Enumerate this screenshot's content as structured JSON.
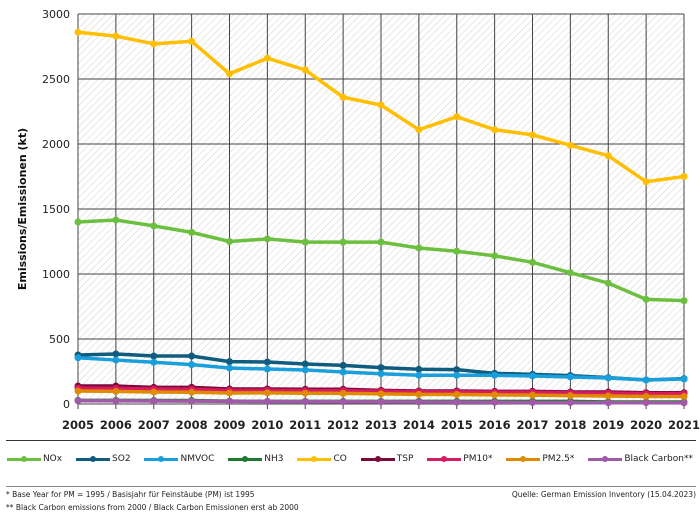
{
  "chart_data": {
    "type": "line",
    "ylabel": "Emissions/Emissionen (kt)",
    "ylim": [
      0,
      3000
    ],
    "yticks": [
      0,
      500,
      1000,
      1500,
      2000,
      2500,
      3000
    ],
    "grid": true,
    "legend_position": "bottom",
    "x": [
      "2005",
      "2006",
      "2007",
      "2008",
      "2009",
      "2010",
      "2011",
      "2012",
      "2013",
      "2014",
      "2015",
      "2016",
      "2017",
      "2018",
      "2019",
      "2020",
      "2021"
    ],
    "series": [
      {
        "name": "NOx",
        "color": "#6cbf3f",
        "values": [
          1400,
          1415,
          1370,
          1320,
          1250,
          1270,
          1245,
          1245,
          1245,
          1200,
          1175,
          1140,
          1090,
          1010,
          930,
          805,
          795
        ]
      },
      {
        "name": "SO2",
        "color": "#0f5c7e",
        "values": [
          377,
          385,
          369,
          369,
          326,
          323,
          308,
          297,
          280,
          267,
          264,
          236,
          228,
          218,
          203,
          185,
          195
        ]
      },
      {
        "name": "NMVOC",
        "color": "#1a9fdc",
        "values": [
          356,
          338,
          321,
          303,
          277,
          269,
          262,
          246,
          233,
          221,
          221,
          221,
          215,
          208,
          200,
          185,
          192
        ]
      },
      {
        "name": "NH3",
        "color": "#1e7a2e",
        "values": [
          28,
          28,
          27,
          27,
          22,
          20,
          20,
          20,
          20,
          20,
          20,
          20,
          20,
          20,
          15,
          15,
          15
        ]
      },
      {
        "name": "CO",
        "color": "#ffbf00",
        "values": [
          2860,
          2830,
          2770,
          2790,
          2540,
          2660,
          2570,
          2360,
          2300,
          2110,
          2210,
          2110,
          2070,
          1990,
          1910,
          1710,
          1750
        ]
      },
      {
        "name": "TSP",
        "color": "#7a0a3a",
        "values": [
          138,
          138,
          128,
          128,
          115,
          115,
          113,
          113,
          105,
          100,
          100,
          97,
          97,
          92,
          92,
          87,
          87
        ]
      },
      {
        "name": "PM10*",
        "color": "#d81b60",
        "values": [
          122,
          120,
          115,
          113,
          105,
          105,
          103,
          103,
          98,
          94,
          93,
          91,
          90,
          86,
          84,
          80,
          80
        ]
      },
      {
        "name": "PM2.5*",
        "color": "#e08a00",
        "values": [
          100,
          97,
          92,
          90,
          85,
          86,
          83,
          82,
          78,
          74,
          73,
          70,
          68,
          64,
          62,
          58,
          58
        ]
      },
      {
        "name": "Black Carbon**",
        "color": "#a05aa8",
        "values": [
          25,
          24,
          23,
          22,
          20,
          19,
          18,
          17,
          16,
          15,
          14,
          13,
          12,
          11,
          10,
          10,
          9
        ]
      }
    ]
  },
  "notes": {
    "base_year": "* Base Year for PM = 1995 / Basisjahr für Feinstäube (PM) ist 1995",
    "black_carbon": "** Black Carbon emissions from 2000 / Black Carbon Emissionen erst ab 2000",
    "source": "Quelle:  German Emission Inventory (15.04.2023)"
  }
}
